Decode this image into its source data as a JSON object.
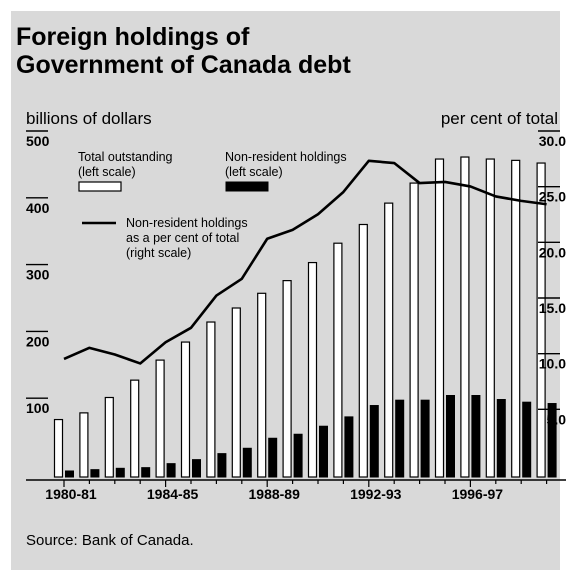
{
  "title_lines": [
    "Foreign holdings of",
    "Government of Canada debt"
  ],
  "source": "Source: Bank of Canada.",
  "chart_data": {
    "type": "bar",
    "title": "Foreign holdings of Government of Canada debt",
    "left_axis": {
      "label": "billions of dollars",
      "range": [
        0,
        500
      ],
      "ticks": [
        100,
        200,
        300,
        400,
        500
      ]
    },
    "right_axis": {
      "label": "per cent of total",
      "range": [
        0,
        30
      ],
      "ticks": [
        "5.0",
        "10.0",
        "15.0",
        "20.0",
        "25.0",
        "30.0"
      ]
    },
    "x_tick_labels": [
      "1980-81",
      "1984-85",
      "1988-89",
      "1992-93",
      "1996-97"
    ],
    "categories": [
      "1980-81",
      "1981-82",
      "1982-83",
      "1983-84",
      "1984-85",
      "1985-86",
      "1986-87",
      "1987-88",
      "1988-89",
      "1989-90",
      "1990-91",
      "1991-92",
      "1992-93",
      "1993-94",
      "1994-95",
      "1995-96",
      "1996-97",
      "1997-98",
      "1998-99",
      "1999-00"
    ],
    "series": [
      {
        "name": "Total outstanding (left scale)",
        "name_lines": [
          "Total outstanding",
          "(left scale)"
        ],
        "kind": "bar",
        "axis": "left",
        "color": "#ffffff",
        "values": [
          86,
          96,
          119,
          145,
          175,
          202,
          232,
          253,
          275,
          294,
          321,
          350,
          378,
          410,
          440,
          476,
          479,
          476,
          474,
          470
        ]
      },
      {
        "name": "Non-resident holdings (left scale)",
        "name_lines": [
          "Non-resident holdings",
          "(left scale)"
        ],
        "kind": "bar",
        "axis": "left",
        "color": "#000000",
        "values": [
          9,
          11,
          13,
          14,
          20,
          26,
          35,
          43,
          58,
          64,
          76,
          90,
          107,
          115,
          115,
          122,
          122,
          116,
          112,
          110
        ]
      },
      {
        "name": "Non-resident holdings as a per cent of total (right scale)",
        "name_lines": [
          "Non-resident holdings",
          "as a per cent of total",
          "(right scale)"
        ],
        "kind": "line",
        "axis": "right",
        "color": "#000000",
        "values": [
          10.6,
          11.6,
          11.0,
          10.2,
          12.1,
          13.4,
          16.3,
          17.8,
          21.4,
          22.2,
          23.6,
          25.6,
          28.4,
          28.2,
          26.4,
          26.5,
          26.1,
          25.2,
          24.8,
          24.5
        ]
      }
    ]
  }
}
